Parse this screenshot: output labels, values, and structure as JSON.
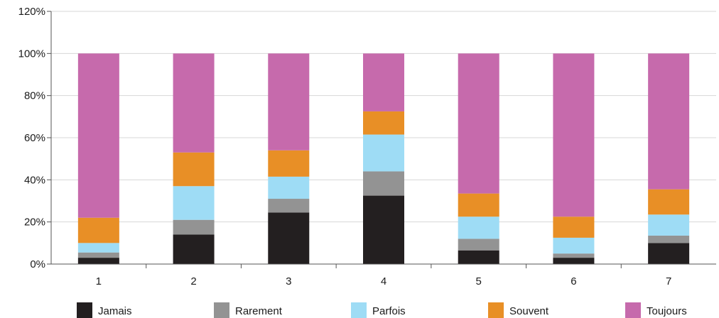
{
  "chart_data": {
    "type": "bar",
    "stacked": true,
    "categories": [
      "1",
      "2",
      "3",
      "4",
      "5",
      "6",
      "7"
    ],
    "series": [
      {
        "name": "Jamais",
        "color": "#231f20",
        "values": [
          3,
          14,
          24.5,
          32.5,
          6.5,
          3,
          10
        ]
      },
      {
        "name": "Rarement",
        "color": "#939393",
        "values": [
          2.5,
          7,
          6.5,
          11.5,
          5.5,
          2,
          3.5
        ]
      },
      {
        "name": "Parfois",
        "color": "#9edcf5",
        "values": [
          4.5,
          16,
          10.5,
          17.5,
          10.5,
          7.5,
          10
        ]
      },
      {
        "name": "Souvent",
        "color": "#e88f26",
        "values": [
          12,
          16,
          12.5,
          11,
          11,
          10,
          12
        ]
      },
      {
        "name": "Toujours",
        "color": "#c66aac",
        "values": [
          78,
          47,
          46,
          27.5,
          66.5,
          77.5,
          64.5
        ]
      }
    ],
    "ylim": [
      0,
      120
    ],
    "yticks": [
      "0%",
      "20%",
      "40%",
      "60%",
      "80%",
      "100%",
      "120%"
    ],
    "grid": true,
    "legend_position": "bottom"
  }
}
